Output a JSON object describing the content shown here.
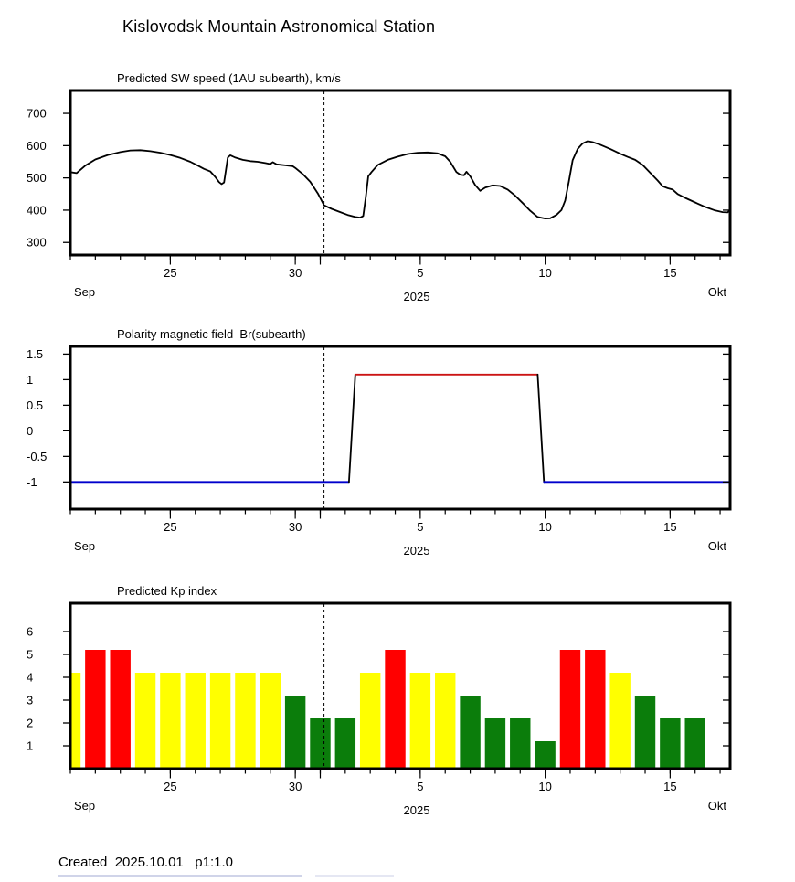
{
  "title": "Kislovodsk Mountain Astronomical Station",
  "footer": {
    "created": "Created  2025.10.01   p1:1.0"
  },
  "x_axis": {
    "day_range": [
      0,
      26.4
    ],
    "start_month_label": "Sep",
    "end_month_label": "Okt",
    "year_label": "2025",
    "major_ticks": [
      {
        "day": 4,
        "label": "25"
      },
      {
        "day": 9,
        "label": "30"
      },
      {
        "day": 10,
        "label": ""
      },
      {
        "day": 14,
        "label": "5"
      },
      {
        "day": 19,
        "label": "10"
      },
      {
        "day": 24,
        "label": "15"
      }
    ],
    "minor_tick_every_days": 1,
    "now_line_day": 10.15
  },
  "chart_data": [
    {
      "id": "sw-speed",
      "type": "line",
      "title": "Predicted SW speed (1AU subearth), km/s",
      "ylabel": "km/s",
      "legend": "none",
      "grid": false,
      "y_axis": {
        "ticks": [
          300,
          400,
          500,
          600,
          700
        ],
        "range": [
          261,
          771
        ]
      },
      "series": [
        {
          "name": "predicted-sw-speed",
          "color": "#000000",
          "points_day_value": [
            [
              0,
              518
            ],
            [
              0.25,
              515
            ],
            [
              0.6,
              538
            ],
            [
              1,
              557
            ],
            [
              1.5,
              571
            ],
            [
              2,
              580
            ],
            [
              2.4,
              585
            ],
            [
              2.8,
              586
            ],
            [
              3.2,
              583
            ],
            [
              3.6,
              578
            ],
            [
              4,
              571
            ],
            [
              4.4,
              562
            ],
            [
              4.8,
              550
            ],
            [
              5.1,
              538
            ],
            [
              5.35,
              528
            ],
            [
              5.6,
              520
            ],
            [
              5.8,
              503
            ],
            [
              5.95,
              487
            ],
            [
              6.05,
              481
            ],
            [
              6.15,
              486
            ],
            [
              6.3,
              563
            ],
            [
              6.4,
              570
            ],
            [
              6.6,
              563
            ],
            [
              6.9,
              556
            ],
            [
              7.2,
              552
            ],
            [
              7.5,
              550
            ],
            [
              7.8,
              546
            ],
            [
              8,
              543
            ],
            [
              8.1,
              549
            ],
            [
              8.25,
              542
            ],
            [
              8.6,
              539
            ],
            [
              8.9,
              536
            ],
            [
              9,
              531
            ],
            [
              9.3,
              512
            ],
            [
              9.6,
              488
            ],
            [
              9.9,
              452
            ],
            [
              10.15,
              415
            ],
            [
              10.45,
              404
            ],
            [
              10.8,
              394
            ],
            [
              11.1,
              385
            ],
            [
              11.4,
              379
            ],
            [
              11.6,
              377
            ],
            [
              11.72,
              382
            ],
            [
              11.82,
              440
            ],
            [
              11.92,
              505
            ],
            [
              12.05,
              518
            ],
            [
              12.3,
              540
            ],
            [
              12.7,
              556
            ],
            [
              13.1,
              566
            ],
            [
              13.5,
              574
            ],
            [
              13.9,
              578
            ],
            [
              14.3,
              579
            ],
            [
              14.7,
              576
            ],
            [
              15,
              567
            ],
            [
              15.2,
              550
            ],
            [
              15.45,
              518
            ],
            [
              15.6,
              510
            ],
            [
              15.75,
              508
            ],
            [
              15.85,
              519
            ],
            [
              16,
              505
            ],
            [
              16.2,
              478
            ],
            [
              16.4,
              460
            ],
            [
              16.6,
              470
            ],
            [
              16.9,
              477
            ],
            [
              17.2,
              475
            ],
            [
              17.5,
              464
            ],
            [
              17.8,
              445
            ],
            [
              18.1,
              422
            ],
            [
              18.4,
              398
            ],
            [
              18.7,
              379
            ],
            [
              19,
              374
            ],
            [
              19.2,
              375
            ],
            [
              19.45,
              385
            ],
            [
              19.65,
              400
            ],
            [
              19.8,
              430
            ],
            [
              19.95,
              490
            ],
            [
              20.1,
              555
            ],
            [
              20.3,
              590
            ],
            [
              20.5,
              607
            ],
            [
              20.7,
              614
            ],
            [
              20.9,
              611
            ],
            [
              21.2,
              603
            ],
            [
              21.6,
              590
            ],
            [
              22,
              575
            ],
            [
              22.3,
              565
            ],
            [
              22.6,
              556
            ],
            [
              22.9,
              540
            ],
            [
              23.2,
              516
            ],
            [
              23.5,
              492
            ],
            [
              23.7,
              474
            ],
            [
              23.9,
              468
            ],
            [
              24.1,
              464
            ],
            [
              24.3,
              450
            ],
            [
              24.6,
              438
            ],
            [
              25,
              424
            ],
            [
              25.4,
              410
            ],
            [
              25.8,
              399
            ],
            [
              26.1,
              394
            ],
            [
              26.3,
              393
            ],
            [
              26.4,
              402
            ]
          ]
        }
      ]
    },
    {
      "id": "polarity",
      "type": "line",
      "title": "Polarity magnetic field  Br(subearth)",
      "grid": false,
      "y_axis": {
        "ticks": [
          -1,
          -0.5,
          0,
          0.5,
          1,
          1.5
        ],
        "range": [
          -1.53,
          1.65
        ]
      },
      "segments": [
        {
          "name": "negative-polarity-before",
          "color": "#0000CC",
          "points_day_value": [
            [
              0,
              -1
            ],
            [
              11.15,
              -1
            ]
          ]
        },
        {
          "name": "transition-up",
          "color": "#000000",
          "points_day_value": [
            [
              11.15,
              -1
            ],
            [
              11.4,
              1.1
            ]
          ]
        },
        {
          "name": "positive-polarity",
          "color": "#CC1414",
          "points_day_value": [
            [
              11.4,
              1.1
            ],
            [
              18.7,
              1.1
            ]
          ]
        },
        {
          "name": "transition-down",
          "color": "#000000",
          "points_day_value": [
            [
              18.7,
              1.1
            ],
            [
              18.95,
              -1
            ]
          ]
        },
        {
          "name": "negative-polarity-after",
          "color": "#0000CC",
          "points_day_value": [
            [
              18.95,
              -1
            ],
            [
              26.4,
              -1
            ]
          ]
        }
      ]
    },
    {
      "id": "kp-index",
      "type": "bar",
      "title": "Predicted Kp index",
      "grid": false,
      "y_axis": {
        "ticks": [
          1,
          2,
          3,
          4,
          5,
          6
        ],
        "range": [
          0,
          7.24
        ]
      },
      "palette": {
        "yellow": "#FFFF00",
        "red": "#FF0000",
        "green": "#0B7D0B"
      },
      "bar_width_days": 0.82,
      "bars": [
        {
          "day": 0,
          "date": "Sep 21",
          "value": 4.2,
          "color": "yellow"
        },
        {
          "day": 1,
          "date": "Sep 22",
          "value": 5.2,
          "color": "red"
        },
        {
          "day": 2,
          "date": "Sep 23",
          "value": 5.2,
          "color": "red"
        },
        {
          "day": 3,
          "date": "Sep 24",
          "value": 4.2,
          "color": "yellow"
        },
        {
          "day": 4,
          "date": "Sep 25",
          "value": 4.2,
          "color": "yellow"
        },
        {
          "day": 5,
          "date": "Sep 26",
          "value": 4.2,
          "color": "yellow"
        },
        {
          "day": 6,
          "date": "Sep 27",
          "value": 4.2,
          "color": "yellow"
        },
        {
          "day": 7,
          "date": "Sep 28",
          "value": 4.2,
          "color": "yellow"
        },
        {
          "day": 8,
          "date": "Sep 29",
          "value": 4.2,
          "color": "yellow"
        },
        {
          "day": 9,
          "date": "Sep 30",
          "value": 3.2,
          "color": "green"
        },
        {
          "day": 10,
          "date": "Okt 1",
          "value": 2.2,
          "color": "green"
        },
        {
          "day": 11,
          "date": "Okt 2",
          "value": 2.2,
          "color": "green"
        },
        {
          "day": 12,
          "date": "Okt 3",
          "value": 4.2,
          "color": "yellow"
        },
        {
          "day": 13,
          "date": "Okt 4",
          "value": 5.2,
          "color": "red"
        },
        {
          "day": 14,
          "date": "Okt 5",
          "value": 4.2,
          "color": "yellow"
        },
        {
          "day": 15,
          "date": "Okt 6",
          "value": 4.2,
          "color": "yellow"
        },
        {
          "day": 16,
          "date": "Okt 7",
          "value": 3.2,
          "color": "green"
        },
        {
          "day": 17,
          "date": "Okt 8",
          "value": 2.2,
          "color": "green"
        },
        {
          "day": 18,
          "date": "Okt 9",
          "value": 2.2,
          "color": "green"
        },
        {
          "day": 19,
          "date": "Okt 10",
          "value": 1.2,
          "color": "green"
        },
        {
          "day": 20,
          "date": "Okt 11",
          "value": 5.2,
          "color": "red"
        },
        {
          "day": 21,
          "date": "Okt 12",
          "value": 5.2,
          "color": "red"
        },
        {
          "day": 22,
          "date": "Okt 13",
          "value": 4.2,
          "color": "yellow"
        },
        {
          "day": 23,
          "date": "Okt 14",
          "value": 3.2,
          "color": "green"
        },
        {
          "day": 24,
          "date": "Okt 15",
          "value": 2.2,
          "color": "green"
        },
        {
          "day": 25,
          "date": "Okt 16",
          "value": 2.2,
          "color": "green"
        }
      ]
    }
  ]
}
